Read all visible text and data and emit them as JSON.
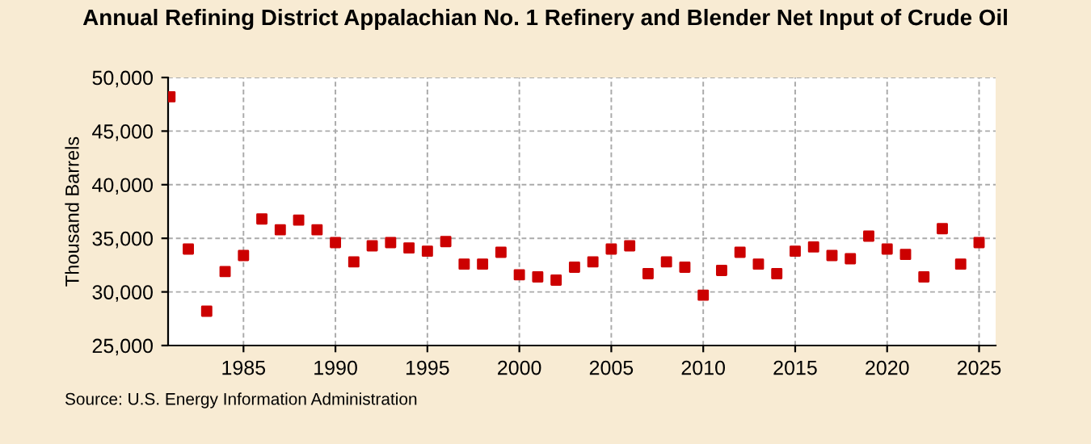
{
  "chart_data": {
    "type": "scatter",
    "title": "Annual Refining District Appalachian No. 1 Refinery and Blender Net Input of Crude Oil",
    "ylabel": "Thousand Barrels",
    "annotations": [
      "Source: U.S. Energy Information Administration"
    ],
    "x": [
      1981,
      1982,
      1983,
      1984,
      1985,
      1986,
      1987,
      1988,
      1989,
      1990,
      1991,
      1992,
      1993,
      1994,
      1995,
      1996,
      1997,
      1998,
      1999,
      2000,
      2001,
      2002,
      2003,
      2004,
      2005,
      2006,
      2007,
      2008,
      2009,
      2010,
      2011,
      2012,
      2013,
      2014,
      2015,
      2016,
      2017,
      2018,
      2019,
      2020,
      2021,
      2022,
      2023,
      2024,
      2025
    ],
    "series": [
      {
        "color": "#cc0000",
        "values": [
          48200,
          34000,
          28200,
          31900,
          33400,
          36800,
          35800,
          36700,
          35800,
          34600,
          32800,
          34300,
          34600,
          34100,
          33800,
          34700,
          32600,
          32600,
          33700,
          31600,
          31400,
          31100,
          32300,
          32800,
          34000,
          34300,
          31700,
          32800,
          32300,
          29700,
          32000,
          33700,
          32600,
          31700,
          33800,
          34200,
          33400,
          33100,
          35200,
          34000,
          33500,
          31400,
          35900,
          32600,
          34600
        ]
      }
    ],
    "xlim": [
      1980.9,
      2025.9
    ],
    "ylim": [
      25000,
      50000
    ],
    "xticks": [
      1985,
      1990,
      1995,
      2000,
      2005,
      2010,
      2015,
      2020,
      2025
    ],
    "yticks": [
      {
        "value": 25000,
        "label": "25,000"
      },
      {
        "value": 30000,
        "label": "30,000"
      },
      {
        "value": 35000,
        "label": "35,000"
      },
      {
        "value": 40000,
        "label": "40,000"
      },
      {
        "value": 45000,
        "label": "45,000"
      },
      {
        "value": 50000,
        "label": "50,000"
      }
    ],
    "grid": true,
    "marker": "square"
  }
}
